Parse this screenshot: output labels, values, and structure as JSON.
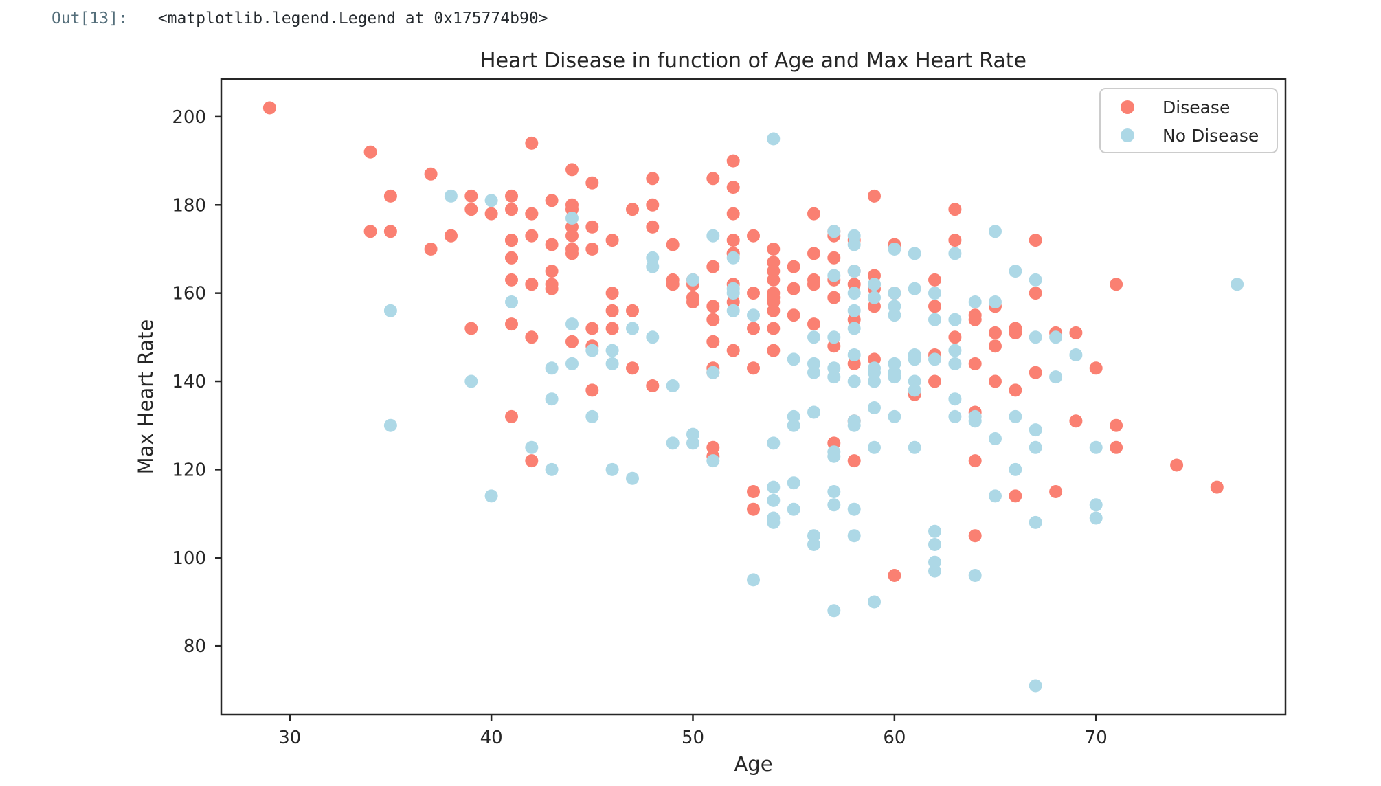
{
  "notebook": {
    "out_prompt": "Out[13]:",
    "out_value": "<matplotlib.legend.Legend at 0x175774b90>"
  },
  "chart_data": {
    "type": "scatter",
    "title": "Heart Disease in function of Age and Max Heart Rate",
    "xlabel": "Age",
    "ylabel": "Max Heart Rate",
    "xlim": [
      26.6,
      79.4
    ],
    "ylim": [
      64.45,
      208.55
    ],
    "xticks": [
      30,
      40,
      50,
      60,
      70
    ],
    "yticks": [
      80,
      100,
      120,
      140,
      160,
      180,
      200
    ],
    "grid": false,
    "legend_position": "upper right",
    "background": "#ffffff",
    "spine_color": "#262626",
    "series": [
      {
        "name": "Disease",
        "color": "#FA8072",
        "points": [
          [
            63,
            150
          ],
          [
            37,
            187
          ],
          [
            41,
            172
          ],
          [
            56,
            178
          ],
          [
            57,
            163
          ],
          [
            57,
            148
          ],
          [
            56,
            153
          ],
          [
            44,
            173
          ],
          [
            52,
            162
          ],
          [
            57,
            174
          ],
          [
            54,
            160
          ],
          [
            48,
            139
          ],
          [
            49,
            171
          ],
          [
            64,
            144
          ],
          [
            58,
            162
          ],
          [
            50,
            158
          ],
          [
            58,
            172
          ],
          [
            66,
            114
          ],
          [
            43,
            171
          ],
          [
            69,
            151
          ],
          [
            59,
            161
          ],
          [
            44,
            179
          ],
          [
            42,
            178
          ],
          [
            61,
            137
          ],
          [
            40,
            178
          ],
          [
            71,
            162
          ],
          [
            59,
            157
          ],
          [
            51,
            123
          ],
          [
            65,
            157
          ],
          [
            53,
            152
          ],
          [
            41,
            168
          ],
          [
            65,
            140
          ],
          [
            44,
            188
          ],
          [
            54,
            152
          ],
          [
            51,
            125
          ],
          [
            46,
            160
          ],
          [
            54,
            170
          ],
          [
            54,
            165
          ],
          [
            65,
            148
          ],
          [
            65,
            151
          ],
          [
            51,
            142
          ],
          [
            48,
            180
          ],
          [
            45,
            148
          ],
          [
            53,
            143
          ],
          [
            39,
            182
          ],
          [
            52,
            172
          ],
          [
            44,
            180
          ],
          [
            47,
            156
          ],
          [
            53,
            115
          ],
          [
            53,
            160
          ],
          [
            51,
            149
          ],
          [
            66,
            151
          ],
          [
            62,
            146
          ],
          [
            44,
            175
          ],
          [
            63,
            172
          ],
          [
            52,
            158
          ],
          [
            48,
            186
          ],
          [
            45,
            185
          ],
          [
            34,
            174
          ],
          [
            57,
            159
          ],
          [
            71,
            130
          ],
          [
            54,
            156
          ],
          [
            52,
            190
          ],
          [
            41,
            132
          ],
          [
            58,
            165
          ],
          [
            35,
            182
          ],
          [
            51,
            143
          ],
          [
            45,
            175
          ],
          [
            44,
            170
          ],
          [
            62,
            163
          ],
          [
            54,
            147
          ],
          [
            51,
            154
          ],
          [
            29,
            202
          ],
          [
            51,
            186
          ],
          [
            43,
            165
          ],
          [
            55,
            161
          ],
          [
            51,
            166
          ],
          [
            59,
            164
          ],
          [
            52,
            184
          ],
          [
            58,
            154
          ],
          [
            41,
            179
          ],
          [
            45,
            170
          ],
          [
            60,
            160
          ],
          [
            52,
            178
          ],
          [
            42,
            122
          ],
          [
            67,
            160
          ],
          [
            68,
            151
          ],
          [
            46,
            156
          ],
          [
            54,
            158
          ],
          [
            58,
            122
          ],
          [
            48,
            175
          ],
          [
            57,
            168
          ],
          [
            52,
            169
          ],
          [
            54,
            159
          ],
          [
            45,
            138
          ],
          [
            53,
            111
          ],
          [
            62,
            157
          ],
          [
            52,
            147
          ],
          [
            43,
            162
          ],
          [
            53,
            173
          ],
          [
            42,
            178
          ],
          [
            59,
            145
          ],
          [
            63,
            179
          ],
          [
            42,
            194
          ],
          [
            50,
            163
          ],
          [
            68,
            115
          ],
          [
            69,
            131
          ],
          [
            45,
            152
          ],
          [
            50,
            162
          ],
          [
            50,
            159
          ],
          [
            64,
            154
          ],
          [
            57,
            173
          ],
          [
            64,
            133
          ],
          [
            43,
            161
          ],
          [
            55,
            155
          ],
          [
            37,
            170
          ],
          [
            41,
            168
          ],
          [
            56,
            162
          ],
          [
            46,
            172
          ],
          [
            46,
            152
          ],
          [
            64,
            122
          ],
          [
            59,
            182
          ],
          [
            41,
            172
          ],
          [
            54,
            167
          ],
          [
            39,
            179
          ],
          [
            34,
            192
          ],
          [
            47,
            143
          ],
          [
            67,
            172
          ],
          [
            52,
            169
          ],
          [
            74,
            121
          ],
          [
            54,
            163
          ],
          [
            49,
            162
          ],
          [
            42,
            162
          ],
          [
            41,
            153
          ],
          [
            41,
            163
          ],
          [
            49,
            163
          ],
          [
            60,
            96
          ],
          [
            62,
            140
          ],
          [
            57,
            126
          ],
          [
            64,
            105
          ],
          [
            51,
            157
          ],
          [
            43,
            181
          ],
          [
            42,
            173
          ],
          [
            67,
            142
          ],
          [
            76,
            116
          ],
          [
            70,
            143
          ],
          [
            44,
            149
          ],
          [
            60,
            171
          ],
          [
            44,
            169
          ],
          [
            42,
            150
          ],
          [
            66,
            138
          ],
          [
            71,
            125
          ],
          [
            64,
            155
          ],
          [
            66,
            152
          ],
          [
            39,
            152
          ],
          [
            58,
            131
          ],
          [
            47,
            179
          ],
          [
            35,
            174
          ],
          [
            58,
            144
          ],
          [
            56,
            163
          ],
          [
            56,
            169
          ],
          [
            55,
            166
          ],
          [
            41,
            182
          ],
          [
            38,
            173
          ],
          [
            38,
            173
          ]
        ]
      },
      {
        "name": "No Disease",
        "color": "#ADD8E6",
        "points": [
          [
            67,
            108
          ],
          [
            67,
            129
          ],
          [
            62,
            160
          ],
          [
            63,
            147
          ],
          [
            53,
            155
          ],
          [
            56,
            142
          ],
          [
            48,
            168
          ],
          [
            58,
            160
          ],
          [
            58,
            173
          ],
          [
            60,
            132
          ],
          [
            40,
            114
          ],
          [
            60,
            160
          ],
          [
            64,
            158
          ],
          [
            43,
            120
          ],
          [
            57,
            112
          ],
          [
            55,
            132
          ],
          [
            65,
            114
          ],
          [
            61,
            169
          ],
          [
            58,
            165
          ],
          [
            50,
            128
          ],
          [
            44,
            153
          ],
          [
            60,
            144
          ],
          [
            54,
            109
          ],
          [
            50,
            163
          ],
          [
            41,
            158
          ],
          [
            51,
            142
          ],
          [
            58,
            131
          ],
          [
            54,
            113
          ],
          [
            60,
            142
          ],
          [
            60,
            155
          ],
          [
            59,
            140
          ],
          [
            46,
            147
          ],
          [
            67,
            163
          ],
          [
            62,
            99
          ],
          [
            65,
            158
          ],
          [
            44,
            177
          ],
          [
            60,
            141
          ],
          [
            58,
            111
          ],
          [
            68,
            150
          ],
          [
            62,
            145
          ],
          [
            52,
            161
          ],
          [
            59,
            142
          ],
          [
            60,
            157
          ],
          [
            49,
            139
          ],
          [
            59,
            162
          ],
          [
            57,
            150
          ],
          [
            61,
            140
          ],
          [
            39,
            140
          ],
          [
            61,
            146
          ],
          [
            56,
            144
          ],
          [
            43,
            136
          ],
          [
            62,
            97
          ],
          [
            63,
            132
          ],
          [
            65,
            127
          ],
          [
            48,
            150
          ],
          [
            63,
            154
          ],
          [
            55,
            111
          ],
          [
            65,
            174
          ],
          [
            56,
            133
          ],
          [
            54,
            126
          ],
          [
            70,
            125
          ],
          [
            62,
            103
          ],
          [
            35,
            130
          ],
          [
            59,
            159
          ],
          [
            64,
            131
          ],
          [
            47,
            152
          ],
          [
            57,
            124
          ],
          [
            55,
            145
          ],
          [
            64,
            96
          ],
          [
            70,
            109
          ],
          [
            51,
            173
          ],
          [
            58,
            171
          ],
          [
            60,
            170
          ],
          [
            77,
            162
          ],
          [
            35,
            156
          ],
          [
            70,
            112
          ],
          [
            59,
            143
          ],
          [
            64,
            132
          ],
          [
            57,
            88
          ],
          [
            56,
            105
          ],
          [
            48,
            166
          ],
          [
            56,
            150
          ],
          [
            66,
            120
          ],
          [
            54,
            195
          ],
          [
            69,
            146
          ],
          [
            51,
            122
          ],
          [
            43,
            143
          ],
          [
            62,
            106
          ],
          [
            67,
            125
          ],
          [
            59,
            125
          ],
          [
            45,
            147
          ],
          [
            58,
            130
          ],
          [
            50,
            126
          ],
          [
            62,
            154
          ],
          [
            38,
            182
          ],
          [
            66,
            165
          ],
          [
            52,
            160
          ],
          [
            53,
            95
          ],
          [
            63,
            169
          ],
          [
            54,
            108
          ],
          [
            66,
            132
          ],
          [
            55,
            117
          ],
          [
            49,
            126
          ],
          [
            54,
            116
          ],
          [
            56,
            103
          ],
          [
            46,
            144
          ],
          [
            61,
            145
          ],
          [
            67,
            71
          ],
          [
            58,
            156
          ],
          [
            47,
            118
          ],
          [
            52,
            168
          ],
          [
            58,
            105
          ],
          [
            57,
            141
          ],
          [
            58,
            152
          ],
          [
            61,
            125
          ],
          [
            42,
            125
          ],
          [
            52,
            156
          ],
          [
            59,
            134
          ],
          [
            40,
            181
          ],
          [
            61,
            138
          ],
          [
            46,
            120
          ],
          [
            59,
            162
          ],
          [
            57,
            164
          ],
          [
            57,
            143
          ],
          [
            55,
            130
          ],
          [
            61,
            161
          ],
          [
            58,
            140
          ],
          [
            58,
            146
          ],
          [
            67,
            150
          ],
          [
            44,
            144
          ],
          [
            63,
            144
          ],
          [
            63,
            136
          ],
          [
            59,
            90
          ],
          [
            57,
            123
          ],
          [
            45,
            132
          ],
          [
            68,
            141
          ],
          [
            57,
            115
          ],
          [
            57,
            174
          ]
        ]
      }
    ]
  }
}
